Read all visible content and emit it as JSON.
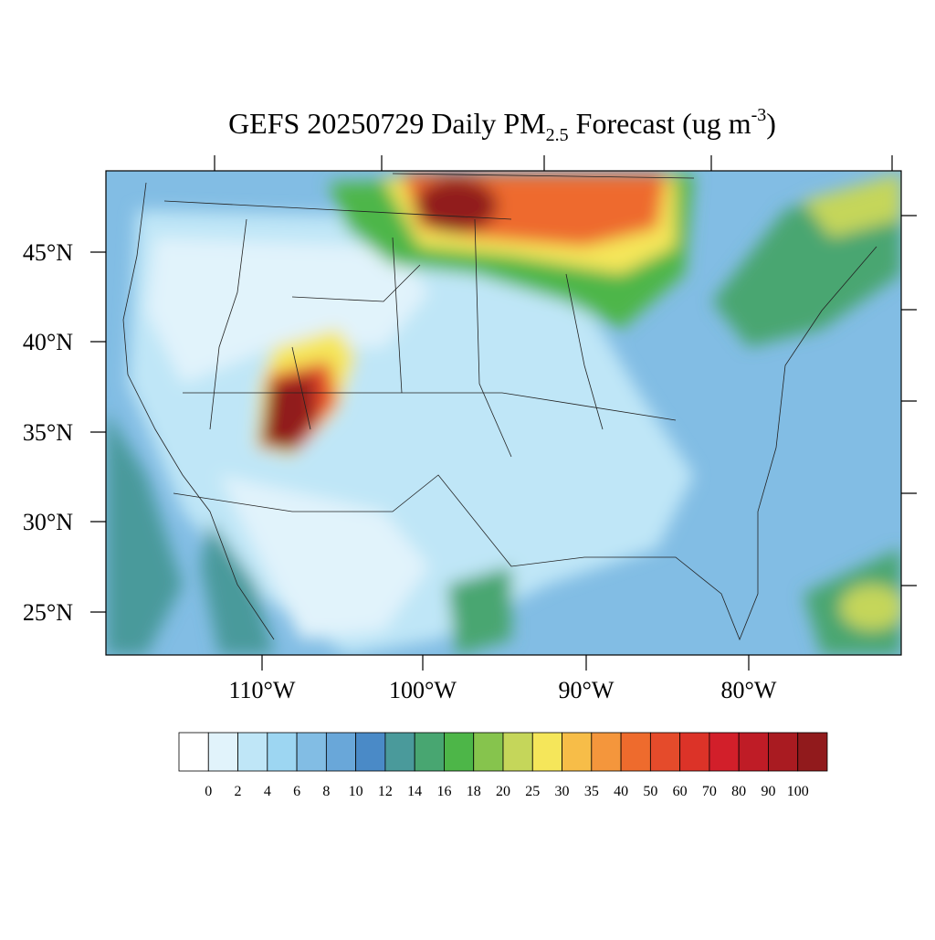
{
  "map": {
    "title": {
      "main": "GEFS 20250729 Daily PM",
      "sub": "2.5",
      "after": " Forecast (ug m",
      "sup": "-3",
      "end": ")"
    },
    "lat_labels": [
      "45°N",
      "40°N",
      "35°N",
      "30°N",
      "25°N"
    ],
    "lon_labels": [
      "110°W",
      "100°W",
      "90°W",
      "80°W"
    ],
    "colorbar": {
      "levels": [
        0,
        2,
        4,
        6,
        8,
        10,
        12,
        14,
        16,
        18,
        20,
        25,
        30,
        35,
        40,
        50,
        60,
        70,
        80,
        90,
        100
      ],
      "colors": [
        "#ffffff",
        "#e1f3fb",
        "#bfe6f7",
        "#9dd6f2",
        "#82bde4",
        "#69a7d9",
        "#4a8ac7",
        "#4a9a9b",
        "#48a671",
        "#4db648",
        "#86c44d",
        "#c5d65a",
        "#f5e65a",
        "#f7bd48",
        "#f4963c",
        "#ee6b2d",
        "#e54b2b",
        "#dc3328",
        "#d21f2a",
        "#bf1c26",
        "#a91b21",
        "#911a1c"
      ]
    }
  }
}
